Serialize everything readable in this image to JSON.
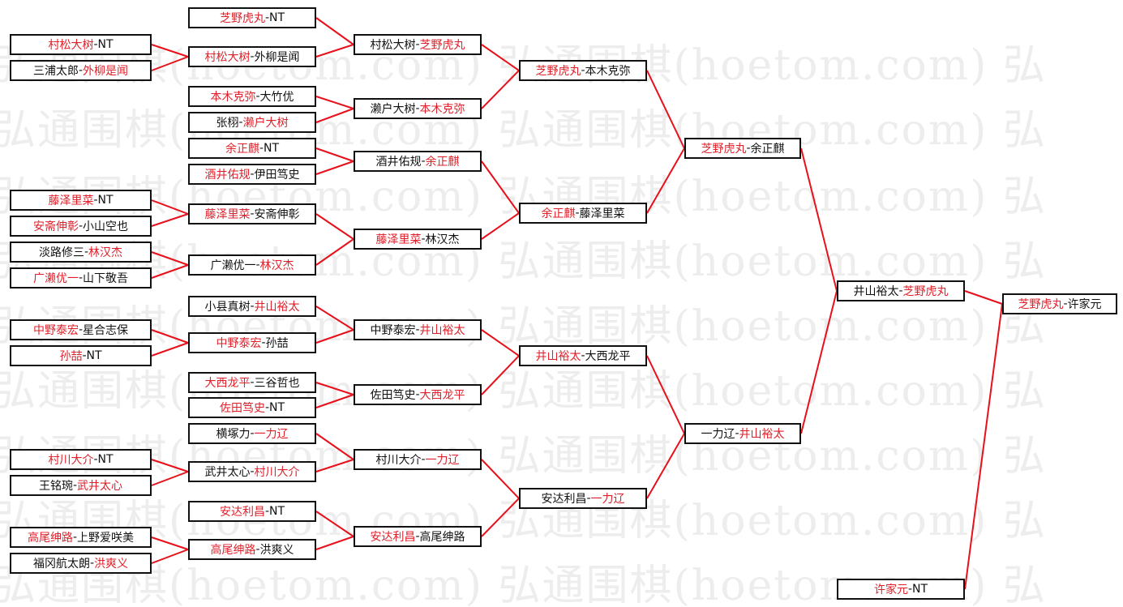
{
  "watermark": "弘通围棋(hoetom.com) 弘通围棋(hoetom.com) 弘",
  "colors": {
    "winner": "#e0202a",
    "line": "#e8101a",
    "text": "#111111",
    "watermark": "#ededed"
  },
  "separator": "-",
  "matches": [
    {
      "a": "村松大树",
      "b": "NT",
      "winner": 0
    },
    {
      "a": "三浦太郎",
      "b": "外柳是闻",
      "winner": 1
    },
    {
      "a": "藤泽里菜",
      "b": "NT",
      "winner": 0
    },
    {
      "a": "安斋伸彰",
      "b": "小山空也",
      "winner": 0
    },
    {
      "a": "淡路修三",
      "b": "林汉杰",
      "winner": 1
    },
    {
      "a": "广濑优一",
      "b": "山下敬吾",
      "winner": 0
    },
    {
      "a": "中野泰宏",
      "b": "星合志保",
      "winner": 0
    },
    {
      "a": "孙喆",
      "b": "NT",
      "winner": 0
    },
    {
      "a": "村川大介",
      "b": "NT",
      "winner": 0
    },
    {
      "a": "王铭琬",
      "b": "武井太心",
      "winner": 1
    },
    {
      "a": "高尾绅路",
      "b": "上野爱咲美",
      "winner": 0
    },
    {
      "a": "福冈航太朗",
      "b": "洪爽义",
      "winner": 1
    },
    {
      "a": "芝野虎丸",
      "b": "NT",
      "winner": 0
    },
    {
      "a": "村松大树",
      "b": "外柳是闻",
      "winner": 0
    },
    {
      "a": "本木克弥",
      "b": "大竹优",
      "winner": 0
    },
    {
      "a": "张栩",
      "b": "濑户大树",
      "winner": 1
    },
    {
      "a": "余正麒",
      "b": "NT",
      "winner": 0
    },
    {
      "a": "酒井佑规",
      "b": "伊田笃史",
      "winner": 0
    },
    {
      "a": "藤泽里菜",
      "b": "安斋伸彰",
      "winner": 0
    },
    {
      "a": "广濑优一",
      "b": "林汉杰",
      "winner": 1
    },
    {
      "a": "小县真树",
      "b": "井山裕太",
      "winner": 1
    },
    {
      "a": "中野泰宏",
      "b": "孙喆",
      "winner": 0
    },
    {
      "a": "大西龙平",
      "b": "三谷哲也",
      "winner": 0
    },
    {
      "a": "佐田笃史",
      "b": "NT",
      "winner": 0
    },
    {
      "a": "横塚力",
      "b": "一力辽",
      "winner": 1
    },
    {
      "a": "武井太心",
      "b": "村川大介",
      "winner": 1
    },
    {
      "a": "安达利昌",
      "b": "NT",
      "winner": 0
    },
    {
      "a": "高尾绅路",
      "b": "洪爽义",
      "winner": 0
    },
    {
      "a": "村松大树",
      "b": "芝野虎丸",
      "winner": 1
    },
    {
      "a": "濑户大树",
      "b": "本木克弥",
      "winner": 1
    },
    {
      "a": "酒井佑规",
      "b": "余正麒",
      "winner": 1
    },
    {
      "a": "藤泽里菜",
      "b": "林汉杰",
      "winner": 0
    },
    {
      "a": "中野泰宏",
      "b": "井山裕太",
      "winner": 1
    },
    {
      "a": "佐田笃史",
      "b": "大西龙平",
      "winner": 1
    },
    {
      "a": "村川大介",
      "b": "一力辽",
      "winner": 1
    },
    {
      "a": "安达利昌",
      "b": "高尾绅路",
      "winner": 0
    },
    {
      "a": "芝野虎丸",
      "b": "本木克弥",
      "winner": 0
    },
    {
      "a": "余正麒",
      "b": "藤泽里菜",
      "winner": 0
    },
    {
      "a": "井山裕太",
      "b": "大西龙平",
      "winner": 0
    },
    {
      "a": "安达利昌",
      "b": "一力辽",
      "winner": 1
    },
    {
      "a": "芝野虎丸",
      "b": "余正麒",
      "winner": 0
    },
    {
      "a": "一力辽",
      "b": "井山裕太",
      "winner": 1
    },
    {
      "a": "井山裕太",
      "b": "芝野虎丸",
      "winner": 1
    },
    {
      "a": "许家元",
      "b": "NT",
      "winner": 0
    },
    {
      "a": "芝野虎丸",
      "b": "许家元",
      "winner": 0
    }
  ]
}
